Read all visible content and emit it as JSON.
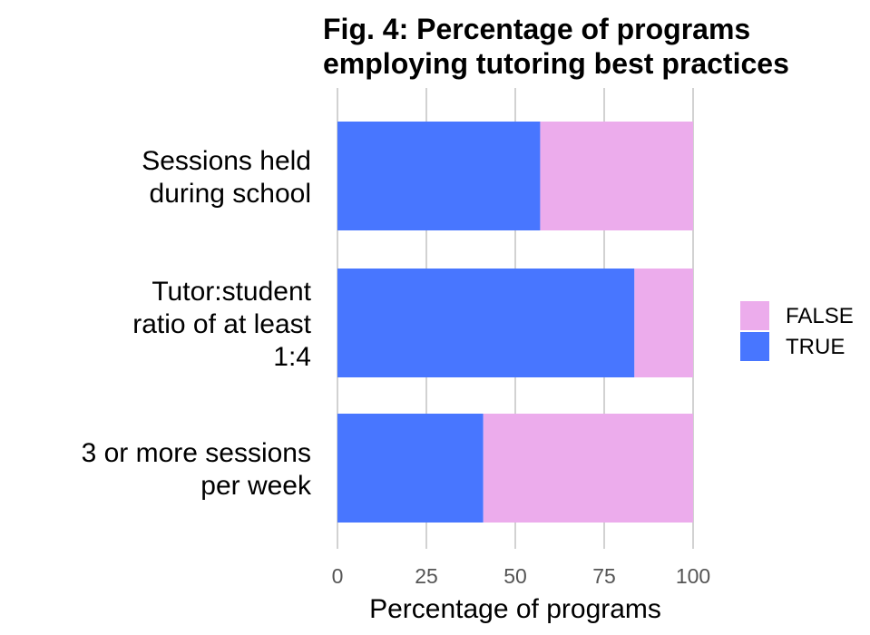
{
  "chart_data": {
    "type": "bar",
    "orientation": "horizontal",
    "stacked": true,
    "title": [
      "Fig. 4: Percentage of programs",
      "employing tutoring best practices"
    ],
    "xlabel": "Percentage of programs",
    "ylabel": "",
    "xlim": [
      0,
      100
    ],
    "xticks": [
      0,
      25,
      50,
      75,
      100
    ],
    "grid": true,
    "legend_position": "right",
    "categories": [
      {
        "lines": [
          "Sessions held",
          "during school"
        ]
      },
      {
        "lines": [
          "Tutor:student",
          "ratio of at least",
          "1:4"
        ]
      },
      {
        "lines": [
          "3 or more sessions",
          "per week"
        ]
      }
    ],
    "series": [
      {
        "name": "TRUE",
        "color": "#4876ff",
        "values": [
          57,
          83.5,
          41
        ]
      },
      {
        "name": "FALSE",
        "color": "#ecacec",
        "values": [
          43,
          16.5,
          59
        ]
      }
    ],
    "legend": [
      {
        "label": "FALSE",
        "color": "#ecacec"
      },
      {
        "label": "TRUE",
        "color": "#4876ff"
      }
    ]
  }
}
